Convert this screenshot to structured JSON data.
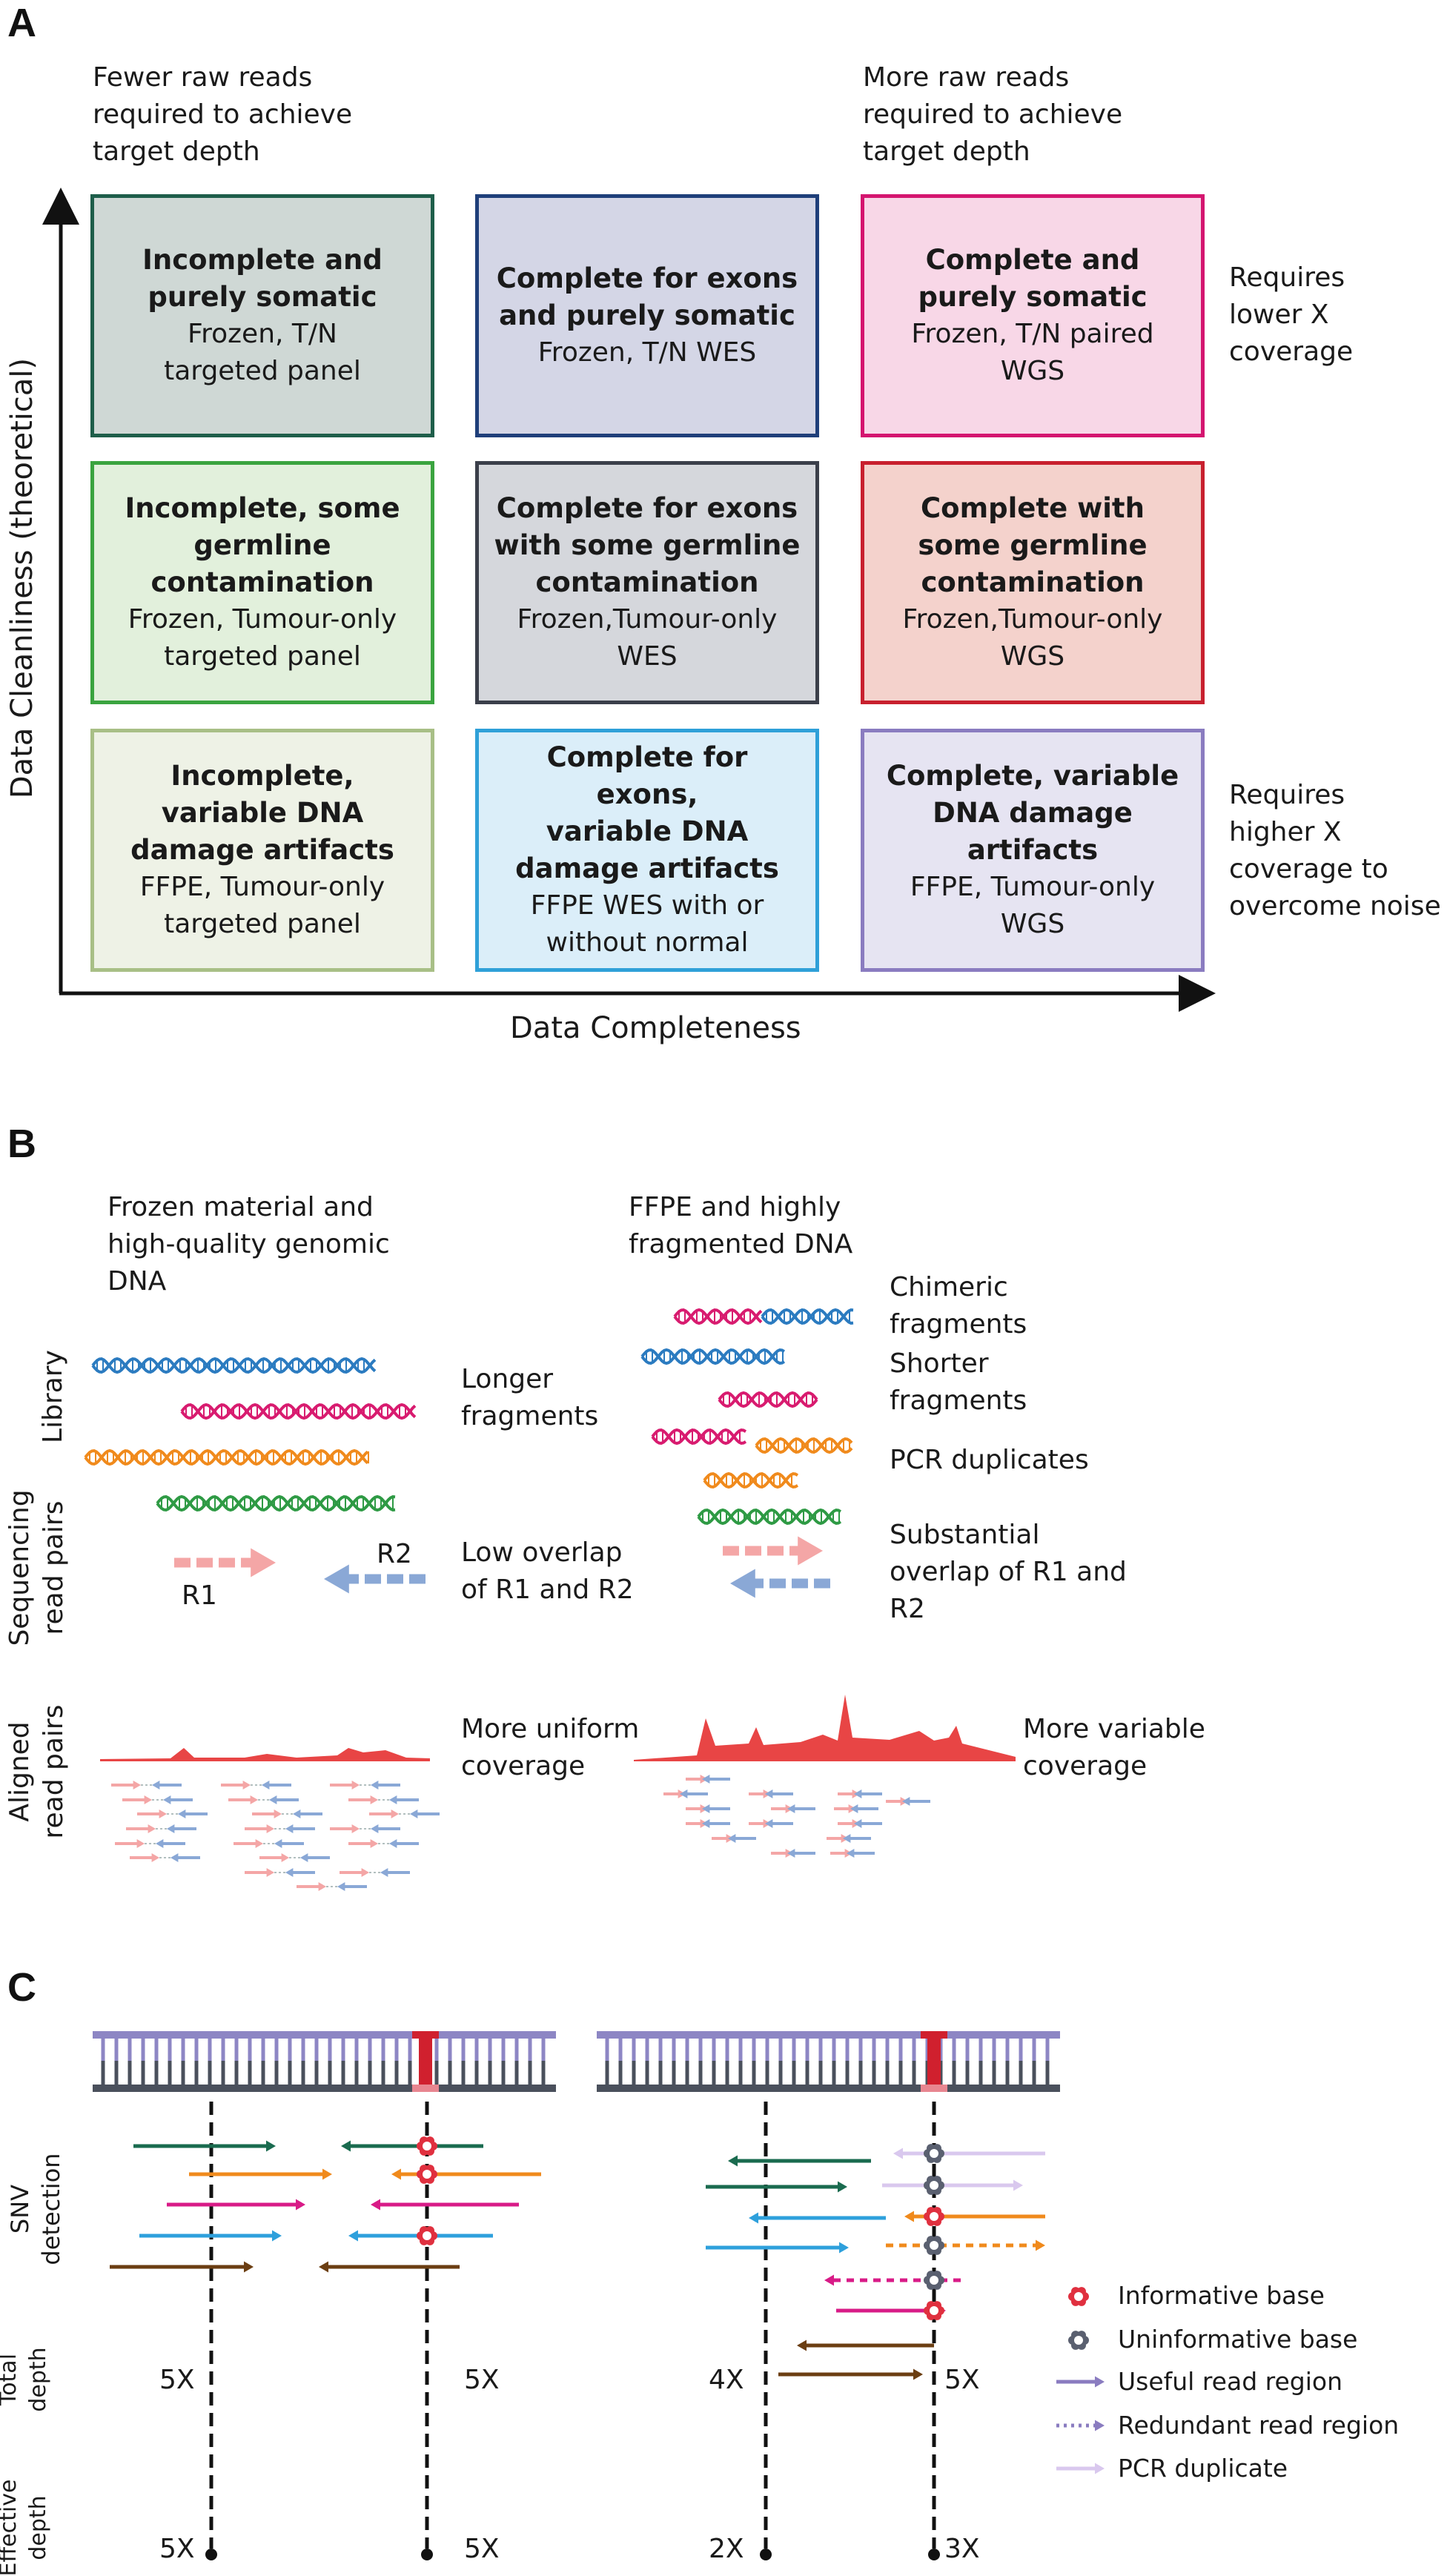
{
  "panel_a": {
    "letter": "A",
    "top_left_note": "Fewer raw reads\nrequired to achieve\ntarget depth",
    "top_right_note": "More raw reads\nrequired to achieve\ntarget depth",
    "right_top_note": "Requires\nlower X\ncoverage",
    "right_bottom_note": "Requires\nhigher X\ncoverage to\novercome noise",
    "y_axis_label": "Data Cleanliness (theoretical)",
    "x_axis_label": "Data Completeness",
    "boxes": [
      {
        "title": "Incomplete and\npurely somatic",
        "sub": "Frozen, T/N\ntargeted panel",
        "border": "#1e5e4a",
        "fill": "#cfd8d5"
      },
      {
        "title": "Complete for exons\nand purely somatic",
        "sub": "Frozen, T/N WES",
        "border": "#1f3f7a",
        "fill": "#d4d6e6"
      },
      {
        "title": "Complete and\npurely somatic",
        "sub": "Frozen, T/N paired\nWGS",
        "border": "#d4156f",
        "fill": "#f8d7e7"
      },
      {
        "title": "Incomplete, some\ngermline\ncontamination",
        "sub": "Frozen, Tumour-only\ntargeted panel",
        "border": "#3aa43f",
        "fill": "#e2f0dc"
      },
      {
        "title": "Complete for exons\nwith some germline\ncontamination",
        "sub": "Frozen,Tumour-only\nWES",
        "border": "#3b3f4a",
        "fill": "#d5d7dc"
      },
      {
        "title": "Complete with\nsome germline\ncontamination",
        "sub": "Frozen,Tumour-only\nWGS",
        "border": "#c8202e",
        "fill": "#f4d2cc"
      },
      {
        "title": "Incomplete,\nvariable DNA\ndamage artifacts",
        "sub": "FFPE, Tumour-only\ntargeted panel",
        "border": "#a8bf86",
        "fill": "#eef2e6"
      },
      {
        "title": "Complete for exons,\nvariable DNA\ndamage artifacts",
        "sub": "FFPE WES with or\nwithout normal",
        "border": "#2fa0d8",
        "fill": "#dbeef9"
      },
      {
        "title": "Complete, variable\nDNA damage\nartifacts",
        "sub": "FFPE, Tumour-only\nWGS",
        "border": "#8a7cc0",
        "fill": "#e6e4f2"
      }
    ]
  },
  "panel_b": {
    "letter": "B",
    "left_heading": "Frozen material and\nhigh-quality genomic\nDNA",
    "right_heading": "FFPE and highly\nfragmented DNA",
    "row_label_library": "Library",
    "row_label_sequencing": "Sequencing\nread pairs",
    "row_label_aligned": "Aligned\nread pairs",
    "longer_fragments": "Longer\nfragments",
    "chimeric_fragments": "Chimeric\nfragments",
    "shorter_fragments": "Shorter\nfragments",
    "pcr_duplicates": "PCR duplicates",
    "r1": "R1",
    "r2": "R2",
    "low_overlap": "Low overlap\nof R1 and R2",
    "substantial_overlap": "Substantial\noverlap of R1 and\nR2",
    "more_uniform": "More uniform\ncoverage",
    "more_variable": "More variable\ncoverage",
    "colors": {
      "blue": "#2b7bc0",
      "pink": "#d81b6f",
      "orange": "#f08a1c",
      "green": "#2e9a44",
      "r1": "#f4a6a6",
      "r2": "#8aa8d6",
      "coverage": "#e84545"
    }
  },
  "panel_c": {
    "letter": "C",
    "row_label_snv": "SNV\ndetection",
    "row_label_total": "Total\ndepth",
    "row_label_effective": "Effective\ndepth",
    "left_total_a": "5X",
    "left_total_b": "5X",
    "left_effective_a": "5X",
    "left_effective_b": "5X",
    "right_total_a": "4X",
    "right_total_b": "5X",
    "right_effective_a": "2X",
    "right_effective_b": "3X",
    "legend": [
      {
        "label": "Informative base",
        "icon": "informative-base-icon"
      },
      {
        "label": "Uninformative base",
        "icon": "uninformative-base-icon"
      },
      {
        "label": "Useful read region",
        "icon": "useful-read-arrow-icon"
      },
      {
        "label": "Redundant read region",
        "icon": "redundant-read-arrow-icon"
      },
      {
        "label": "PCR duplicate",
        "icon": "pcr-duplicate-arrow-icon"
      }
    ],
    "colors": {
      "teal": "#1a6b4f",
      "orange": "#f08a1c",
      "pink": "#d81b87",
      "cyan": "#2ea0dc",
      "brown": "#6b3e12",
      "informative": "#e0303f",
      "uninformative": "#5a6070",
      "useful": "#8a7cc0",
      "pcr": "#d9c8ee"
    }
  }
}
